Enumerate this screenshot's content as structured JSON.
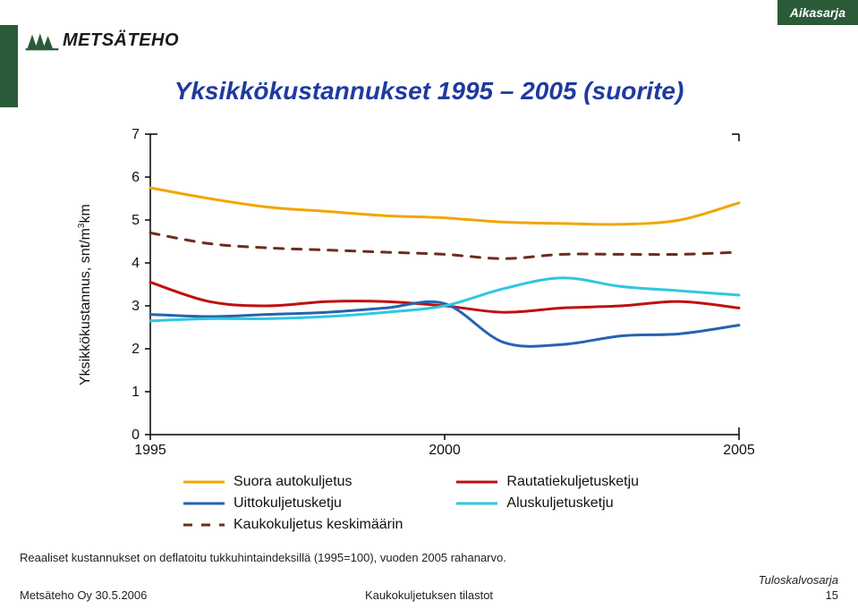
{
  "topbar": {
    "label": "Aikasarja",
    "bg": "#2b5a39"
  },
  "logo": {
    "text": "METSÄTEHO"
  },
  "title": "Yksikkökustannukset 1995 – 2005 (suorite)",
  "chart": {
    "type": "line",
    "ylabel_html": "Yksikkökustannus, snt/m<sup>3</sup>km",
    "ylim": [
      0,
      7
    ],
    "ytick_step": 1,
    "xlim": [
      1995,
      2005
    ],
    "xticks": [
      1995,
      2000,
      2005
    ],
    "background_color": "#ffffff",
    "axis_color": "#000000",
    "axis_width": 1.5,
    "tick_fontsize": 16,
    "line_width": 3,
    "series": [
      {
        "name": "Suora autokuljetus",
        "color": "#f2a500",
        "dash": "",
        "x": [
          1995,
          1996,
          1997,
          1998,
          1999,
          2000,
          2001,
          2002,
          2003,
          2004,
          2005
        ],
        "y": [
          5.75,
          5.5,
          5.3,
          5.2,
          5.1,
          5.05,
          4.95,
          4.92,
          4.9,
          5.0,
          5.4
        ]
      },
      {
        "name": "Rautatiekuljetusketju",
        "color": "#c01010",
        "dash": "",
        "x": [
          1995,
          1996,
          1997,
          1998,
          1999,
          2000,
          2001,
          2002,
          2003,
          2004,
          2005
        ],
        "y": [
          3.55,
          3.1,
          3.0,
          3.1,
          3.1,
          3.0,
          2.85,
          2.95,
          3.0,
          3.1,
          2.95
        ]
      },
      {
        "name": "Uittokuljetusketju",
        "color": "#2563b0",
        "dash": "",
        "x": [
          1995,
          1996,
          1997,
          1998,
          1999,
          2000,
          2001,
          2002,
          2003,
          2004,
          2005
        ],
        "y": [
          2.8,
          2.75,
          2.8,
          2.85,
          2.95,
          3.05,
          2.15,
          2.1,
          2.3,
          2.35,
          2.55
        ]
      },
      {
        "name": "Aluskuljetusketju",
        "color": "#2fc7e0",
        "dash": "",
        "x": [
          1995,
          1996,
          1997,
          1998,
          1999,
          2000,
          2001,
          2002,
          2003,
          2004,
          2005
        ],
        "y": [
          2.65,
          2.7,
          2.7,
          2.75,
          2.85,
          3.0,
          3.4,
          3.65,
          3.45,
          3.35,
          3.25
        ]
      },
      {
        "name": "Kaukokuljetus keskimäärin",
        "color": "#6b2e1e",
        "dash": "10,10",
        "x": [
          1995,
          1996,
          1997,
          1998,
          1999,
          2000,
          2001,
          2002,
          2003,
          2004,
          2005
        ],
        "y": [
          4.7,
          4.45,
          4.35,
          4.3,
          4.25,
          4.2,
          4.1,
          4.2,
          4.2,
          4.2,
          4.25
        ]
      }
    ],
    "legend": {
      "order": [
        [
          "Suora autokuljetus",
          "Rautatiekuljetusketju"
        ],
        [
          "Uittokuljetusketju",
          "Aluskuljetusketju"
        ],
        [
          "Kaukokuljetus keskimäärin",
          null
        ]
      ],
      "fontsize": 16
    }
  },
  "footnote": "Reaaliset kustannukset on deflatoitu tukkuhintaindeksillä (1995=100), vuoden 2005 rahanarvo.",
  "footer": {
    "left": "Metsäteho Oy   30.5.2006",
    "center": "Kaukokuljetuksen tilastot",
    "right_top": "Tuloskalvosarja",
    "right_bottom": "15"
  }
}
